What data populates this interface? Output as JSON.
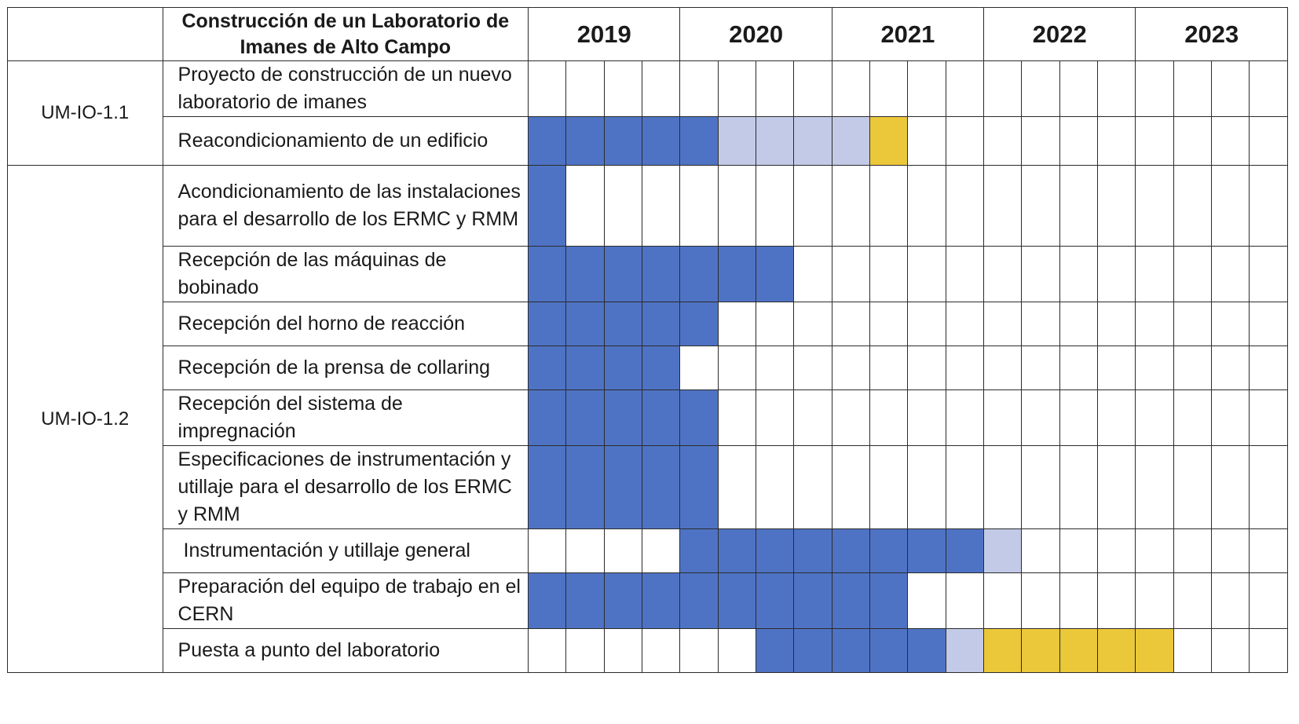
{
  "chart_data": {
    "type": "table",
    "header": {
      "code": "",
      "activity": "Construcción de un Laboratorio de Imanes de Alto Campo",
      "years": [
        "2019",
        "2020",
        "2021",
        "2022",
        "2023"
      ]
    },
    "periods_per_year": 4,
    "colors": {
      "planned": "#4f73c4",
      "tentative": "#c2cae7",
      "milestone": "#ebc73a",
      "empty": "#ffffff"
    },
    "groups": [
      {
        "code": "UM-IO-1.1",
        "tasks": [
          {
            "name": "Proyecto de construcción de un nuevo laboratorio de imanes",
            "cells": [
              0,
              0,
              0,
              0,
              0,
              0,
              0,
              0,
              0,
              0,
              0,
              0,
              0,
              0,
              0,
              0,
              0,
              0,
              0,
              0
            ]
          },
          {
            "name": "Reacondicionamiento de un edificio",
            "cells": [
              1,
              1,
              1,
              1,
              1,
              2,
              2,
              2,
              2,
              3,
              0,
              0,
              0,
              0,
              0,
              0,
              0,
              0,
              0,
              0
            ]
          }
        ]
      },
      {
        "code": "UM-IO-1.2",
        "tasks": [
          {
            "name": "Acondicionamiento de las instalaciones para el desarrollo de los ERMC y RMM",
            "cells": [
              1,
              0,
              0,
              0,
              0,
              0,
              0,
              0,
              0,
              0,
              0,
              0,
              0,
              0,
              0,
              0,
              0,
              0,
              0,
              0
            ]
          },
          {
            "name": "Recepción de las máquinas de bobinado",
            "cells": [
              1,
              1,
              1,
              1,
              1,
              1,
              1,
              0,
              0,
              0,
              0,
              0,
              0,
              0,
              0,
              0,
              0,
              0,
              0,
              0
            ]
          },
          {
            "name": "Recepción del horno de reacción",
            "cells": [
              1,
              1,
              1,
              1,
              1,
              0,
              0,
              0,
              0,
              0,
              0,
              0,
              0,
              0,
              0,
              0,
              0,
              0,
              0,
              0
            ]
          },
          {
            "name": "Recepción de la prensa de collaring",
            "cells": [
              1,
              1,
              1,
              1,
              0,
              0,
              0,
              0,
              0,
              0,
              0,
              0,
              0,
              0,
              0,
              0,
              0,
              0,
              0,
              0
            ]
          },
          {
            "name": "Recepción del sistema de impregnación",
            "cells": [
              1,
              1,
              1,
              1,
              1,
              0,
              0,
              0,
              0,
              0,
              0,
              0,
              0,
              0,
              0,
              0,
              0,
              0,
              0,
              0
            ]
          },
          {
            "name": "Especificaciones de instrumentación y utillaje para el desarrollo de los ERMC y RMM",
            "cells": [
              1,
              1,
              1,
              1,
              1,
              0,
              0,
              0,
              0,
              0,
              0,
              0,
              0,
              0,
              0,
              0,
              0,
              0,
              0,
              0
            ]
          },
          {
            "name": " Instrumentación y utillaje general",
            "cells": [
              0,
              0,
              0,
              0,
              1,
              1,
              1,
              1,
              1,
              1,
              1,
              1,
              2,
              0,
              0,
              0,
              0,
              0,
              0,
              0
            ]
          },
          {
            "name": "Preparación del equipo de trabajo en el CERN",
            "cells": [
              1,
              1,
              1,
              1,
              1,
              1,
              1,
              1,
              1,
              1,
              0,
              0,
              0,
              0,
              0,
              0,
              0,
              0,
              0,
              0
            ]
          },
          {
            "name": "Puesta a punto del laboratorio",
            "cells": [
              0,
              0,
              0,
              0,
              0,
              0,
              1,
              1,
              1,
              1,
              1,
              2,
              3,
              3,
              3,
              3,
              3,
              0,
              0,
              0
            ]
          }
        ]
      }
    ]
  }
}
